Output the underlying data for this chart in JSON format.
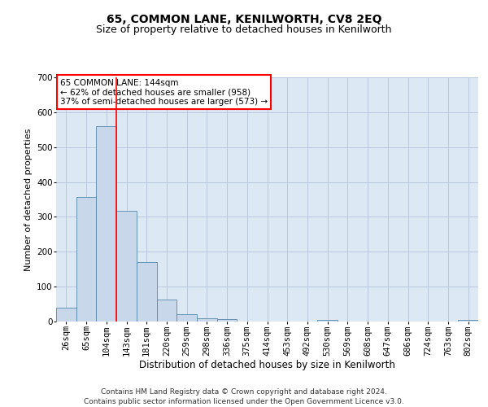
{
  "title": "65, COMMON LANE, KENILWORTH, CV8 2EQ",
  "subtitle": "Size of property relative to detached houses in Kenilworth",
  "xlabel": "Distribution of detached houses by size in Kenilworth",
  "ylabel": "Number of detached properties",
  "categories": [
    "26sqm",
    "65sqm",
    "104sqm",
    "143sqm",
    "181sqm",
    "220sqm",
    "259sqm",
    "298sqm",
    "336sqm",
    "375sqm",
    "414sqm",
    "453sqm",
    "492sqm",
    "530sqm",
    "569sqm",
    "608sqm",
    "647sqm",
    "686sqm",
    "724sqm",
    "763sqm",
    "802sqm"
  ],
  "values": [
    40,
    358,
    560,
    318,
    170,
    62,
    22,
    10,
    6,
    0,
    0,
    0,
    0,
    5,
    0,
    0,
    0,
    0,
    0,
    0,
    5
  ],
  "bar_color": "#c8d8ea",
  "bar_edge_color": "#5588aa",
  "grid_color": "#b8c8dc",
  "bg_color": "#dce8f4",
  "annotation_text": "65 COMMON LANE: 144sqm\n← 62% of detached houses are smaller (958)\n37% of semi-detached houses are larger (573) →",
  "annotation_box_color": "white",
  "annotation_box_edge": "red",
  "red_line_bar_index": 2.5,
  "ylim": [
    0,
    700
  ],
  "yticks": [
    0,
    100,
    200,
    300,
    400,
    500,
    600,
    700
  ],
  "footer": "Contains HM Land Registry data © Crown copyright and database right 2024.\nContains public sector information licensed under the Open Government Licence v3.0.",
  "title_fontsize": 10,
  "subtitle_fontsize": 9,
  "xlabel_fontsize": 8.5,
  "ylabel_fontsize": 8,
  "tick_fontsize": 7.5,
  "footer_fontsize": 6.5,
  "ann_fontsize": 7.5
}
